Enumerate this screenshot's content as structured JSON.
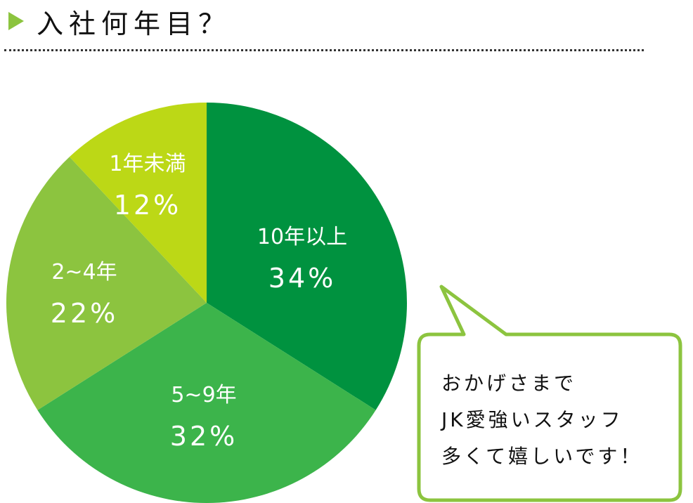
{
  "chart_data": {
    "type": "pie",
    "title": "入社何年目？",
    "slices": [
      {
        "label": "10年以上",
        "value": 34,
        "value_label": "34%",
        "color": "#00923f"
      },
      {
        "label": "5~9年",
        "value": 32,
        "value_label": "32%",
        "color": "#3cb44b"
      },
      {
        "label": "2~4年",
        "value": 22,
        "value_label": "22%",
        "color": "#8cc43f"
      },
      {
        "label": "1年未満",
        "value": 12,
        "value_label": "12%",
        "color": "#bcd816"
      }
    ]
  },
  "bubble": {
    "lines": [
      "おかげさまで",
      "JK愛強いスタッフ",
      "多くて嬉しいです！"
    ],
    "border_color": "#8cc43f"
  }
}
